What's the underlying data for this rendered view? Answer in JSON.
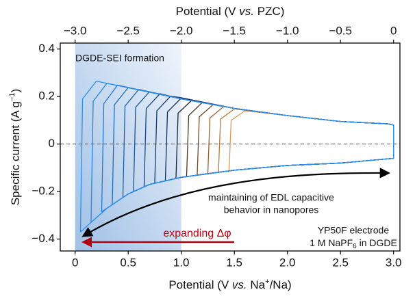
{
  "chart_data": {
    "type": "line",
    "x2label": [
      "Potential (V ",
      "vs.",
      " PZC)"
    ],
    "xlabel": [
      "Potential (V ",
      "vs.",
      " Na",
      "+",
      "/Na)"
    ],
    "ylabel": [
      "Specific current (A g",
      "−1",
      ")"
    ],
    "xlim": [
      -0.14,
      3.06
    ],
    "ylim": [
      -0.45,
      0.425
    ],
    "x2lim": [
      -3.14,
      0.06
    ],
    "xticks": [
      0,
      0.5,
      {
        "value": 1,
        "label": "1.0"
      },
      1.5,
      {
        "value": 2,
        "label": "2.0"
      },
      2.5,
      {
        "value": 3,
        "label": "3.0"
      }
    ],
    "x2ticks": [
      {
        "value": -3,
        "label": "−3.0"
      },
      {
        "value": -2.5,
        "label": "−2.5"
      },
      {
        "value": -2,
        "label": "−2.0"
      },
      {
        "value": -1.5,
        "label": "−1.5"
      },
      {
        "value": -1,
        "label": "−1.0"
      },
      {
        "value": -0.5,
        "label": "−0.5"
      },
      0
    ],
    "yticks": [
      0.4,
      0.2,
      0,
      {
        "value": -0.2,
        "label": "−0.2"
      },
      {
        "value": -0.4,
        "label": "−0.4"
      }
    ],
    "hline": 0,
    "shaded_span": [
      0,
      1.0
    ],
    "annotations": {
      "sei": "DGDE-SEI formation",
      "edl": [
        "maintaining of EDL capacitive",
        "behavior in nanopores"
      ],
      "shift": "expanding Δφ",
      "electrode": "YP50F electrode",
      "electrolyte": [
        "1 M NaPF",
        "6",
        " in DGDE"
      ]
    },
    "series": [
      {
        "color": "#2b8ef0",
        "x": [
          0.05,
          0.07,
          0.2,
          1.0,
          1.5,
          2.0,
          2.5,
          2.95,
          3.0,
          3.0,
          2.5,
          2.0,
          1.5,
          1.0,
          0.7,
          0.5,
          0.3,
          0.15,
          0.05
        ],
        "values": [
          -0.37,
          0.19,
          0.265,
          0.19,
          0.15,
          0.12,
          0.095,
          0.085,
          0.08,
          -0.06,
          -0.08,
          -0.09,
          -0.11,
          -0.14,
          -0.17,
          -0.21,
          -0.27,
          -0.33,
          -0.37
        ]
      },
      {
        "color": "#2a82de",
        "x": [
          0.15,
          0.17,
          0.3,
          1.0,
          1.5,
          2.0,
          2.5,
          2.95,
          3.0,
          3.0,
          2.5,
          2.0,
          1.5,
          1.0,
          0.7,
          0.5,
          0.3,
          0.15
        ],
        "values": [
          -0.33,
          0.18,
          0.256,
          0.19,
          0.15,
          0.12,
          0.095,
          0.085,
          0.08,
          -0.06,
          -0.08,
          -0.09,
          -0.11,
          -0.14,
          -0.17,
          -0.21,
          -0.27,
          -0.33
        ]
      },
      {
        "color": "#2776cb",
        "x": [
          0.25,
          0.27,
          0.4,
          1.0,
          1.5,
          2.0,
          2.5,
          2.95,
          3.0,
          3.0,
          2.5,
          2.0,
          1.5,
          1.0,
          0.7,
          0.5,
          0.3,
          0.25
        ],
        "values": [
          -0.285,
          0.17,
          0.248,
          0.19,
          0.15,
          0.12,
          0.095,
          0.085,
          0.08,
          -0.06,
          -0.08,
          -0.09,
          -0.11,
          -0.14,
          -0.17,
          -0.21,
          -0.27,
          -0.285
        ]
      },
      {
        "color": "#236ab8",
        "x": [
          0.35,
          0.37,
          0.5,
          1.0,
          1.5,
          2.0,
          2.5,
          2.95,
          3.0,
          3.0,
          2.5,
          2.0,
          1.5,
          1.0,
          0.7,
          0.5,
          0.35
        ],
        "values": [
          -0.255,
          0.165,
          0.238,
          0.19,
          0.15,
          0.12,
          0.095,
          0.085,
          0.08,
          -0.06,
          -0.08,
          -0.09,
          -0.11,
          -0.14,
          -0.17,
          -0.21,
          -0.255
        ]
      },
      {
        "color": "#205ea5",
        "x": [
          0.45,
          0.47,
          0.6,
          1.0,
          1.5,
          2.0,
          2.5,
          2.95,
          3.0,
          3.0,
          2.5,
          2.0,
          1.5,
          1.0,
          0.7,
          0.5,
          0.45
        ],
        "values": [
          -0.225,
          0.16,
          0.23,
          0.19,
          0.15,
          0.12,
          0.095,
          0.085,
          0.08,
          -0.06,
          -0.08,
          -0.09,
          -0.11,
          -0.14,
          -0.17,
          -0.21,
          -0.225
        ]
      },
      {
        "color": "#1d5292",
        "x": [
          0.55,
          0.57,
          0.7,
          1.0,
          1.5,
          2.0,
          2.5,
          2.95,
          3.0,
          3.0,
          2.5,
          2.0,
          1.5,
          1.0,
          0.7,
          0.55
        ],
        "values": [
          -0.2,
          0.155,
          0.22,
          0.19,
          0.15,
          0.12,
          0.095,
          0.085,
          0.08,
          -0.06,
          -0.08,
          -0.09,
          -0.11,
          -0.14,
          -0.17,
          -0.2
        ]
      },
      {
        "color": "#1a467f",
        "x": [
          0.65,
          0.67,
          0.8,
          1.0,
          1.5,
          2.0,
          2.5,
          2.95,
          3.0,
          3.0,
          2.5,
          2.0,
          1.5,
          1.0,
          0.7,
          0.65
        ],
        "values": [
          -0.18,
          0.15,
          0.212,
          0.19,
          0.15,
          0.12,
          0.095,
          0.085,
          0.08,
          -0.06,
          -0.08,
          -0.09,
          -0.11,
          -0.14,
          -0.17,
          -0.18
        ]
      },
      {
        "color": "#173a6c",
        "x": [
          0.75,
          0.77,
          0.9,
          1.0,
          1.5,
          2.0,
          2.5,
          2.95,
          3.0,
          3.0,
          2.5,
          2.0,
          1.5,
          1.0,
          0.75
        ],
        "values": [
          -0.165,
          0.14,
          0.202,
          0.195,
          0.15,
          0.12,
          0.095,
          0.085,
          0.08,
          -0.06,
          -0.08,
          -0.09,
          -0.11,
          -0.14,
          -0.165
        ]
      },
      {
        "color": "#142e59",
        "x": [
          0.85,
          0.87,
          1.0,
          1.5,
          2.0,
          2.5,
          2.95,
          3.0,
          3.0,
          2.5,
          2.0,
          1.5,
          1.0,
          0.85
        ],
        "values": [
          -0.155,
          0.135,
          0.194,
          0.15,
          0.12,
          0.095,
          0.085,
          0.08,
          -0.06,
          -0.08,
          -0.09,
          -0.11,
          -0.14,
          -0.155
        ]
      },
      {
        "color": "#1a2233",
        "x": [
          0.95,
          0.97,
          1.1,
          1.5,
          2.0,
          2.5,
          2.95,
          3.0,
          3.0,
          2.5,
          2.0,
          1.5,
          1.0,
          0.95
        ],
        "values": [
          -0.145,
          0.13,
          0.185,
          0.15,
          0.12,
          0.095,
          0.085,
          0.08,
          -0.06,
          -0.08,
          -0.09,
          -0.11,
          -0.14,
          -0.145
        ]
      },
      {
        "color": "#4a3322",
        "x": [
          1.05,
          1.07,
          1.2,
          1.5,
          2.0,
          2.5,
          2.95,
          3.0,
          3.0,
          2.5,
          2.0,
          1.5,
          1.05
        ],
        "values": [
          -0.137,
          0.12,
          0.176,
          0.15,
          0.12,
          0.095,
          0.085,
          0.08,
          -0.06,
          -0.08,
          -0.09,
          -0.11,
          -0.137
        ]
      },
      {
        "color": "#6e4a2a",
        "x": [
          1.15,
          1.17,
          1.3,
          1.5,
          2.0,
          2.5,
          2.95,
          3.0,
          3.0,
          2.5,
          2.0,
          1.5,
          1.15
        ],
        "values": [
          -0.13,
          0.115,
          0.166,
          0.15,
          0.12,
          0.095,
          0.085,
          0.08,
          -0.06,
          -0.08,
          -0.09,
          -0.11,
          -0.13
        ]
      },
      {
        "color": "#946232",
        "x": [
          1.25,
          1.27,
          1.4,
          1.5,
          2.0,
          2.5,
          2.95,
          3.0,
          3.0,
          2.5,
          2.0,
          1.5,
          1.25
        ],
        "values": [
          -0.124,
          0.11,
          0.158,
          0.15,
          0.12,
          0.095,
          0.085,
          0.08,
          -0.06,
          -0.08,
          -0.09,
          -0.11,
          -0.124
        ]
      },
      {
        "color": "#b87a3a",
        "x": [
          1.35,
          1.37,
          1.5,
          2.0,
          2.5,
          2.95,
          3.0,
          3.0,
          2.5,
          2.0,
          1.5,
          1.35
        ],
        "values": [
          -0.118,
          0.105,
          0.148,
          0.12,
          0.095,
          0.085,
          0.08,
          -0.06,
          -0.08,
          -0.09,
          -0.11,
          -0.118
        ]
      },
      {
        "color": "#dc9a55",
        "x": [
          1.45,
          1.47,
          1.6,
          2.0,
          2.5,
          2.95,
          3.0,
          3.0,
          2.5,
          2.0,
          1.5,
          1.45
        ],
        "values": [
          -0.113,
          0.1,
          0.14,
          0.12,
          0.095,
          0.085,
          0.08,
          -0.06,
          -0.08,
          -0.09,
          -0.11,
          -0.113
        ]
      }
    ]
  }
}
